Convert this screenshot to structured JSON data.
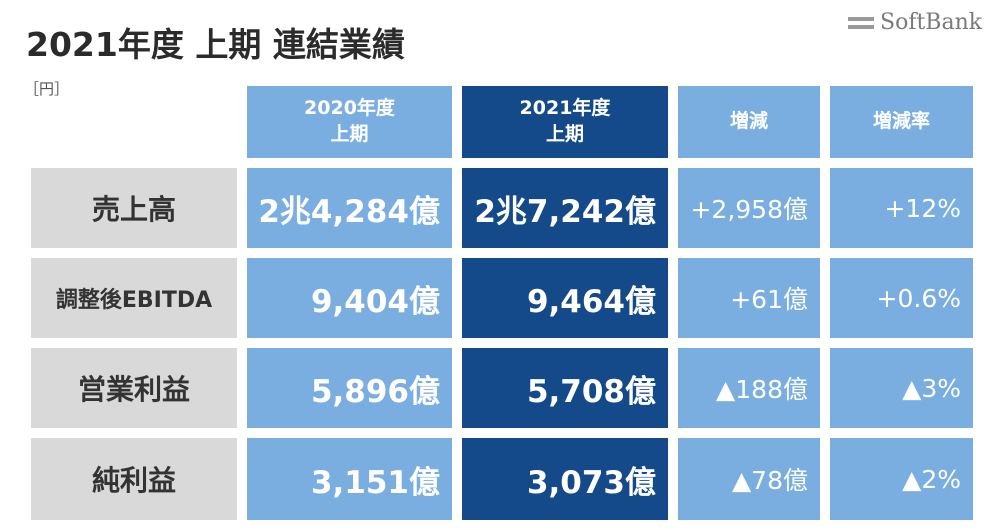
{
  "title": "2021年度 上期 連結業績",
  "logo": {
    "text": "SoftBank",
    "icon": "softbank-bars-logo"
  },
  "unit": "［円］",
  "headers": {
    "prev": [
      "2020年度",
      "上期"
    ],
    "curr": [
      "2021年度",
      "上期"
    ],
    "change": "増減",
    "rate": "増減率"
  },
  "rows": [
    {
      "label": "売上高",
      "prev": "2兆4,284億",
      "curr": "2兆7,242億",
      "change": "+2,958億",
      "rate": "+12%"
    },
    {
      "label": "調整後EBITDA",
      "prev": "9,404億",
      "curr": "9,464億",
      "change": "+61億",
      "rate": "+0.6%"
    },
    {
      "label": "営業利益",
      "prev": "5,896億",
      "curr": "5,708億",
      "change": "▲188億",
      "rate": "▲3%"
    },
    {
      "label": "純利益",
      "prev": "3,151億",
      "curr": "3,073億",
      "change": "▲78億",
      "rate": "▲2%"
    }
  ],
  "colors": {
    "light_blue": "#7aaee0",
    "dark_blue": "#144a8a",
    "label_gray": "#d9d9d9"
  }
}
